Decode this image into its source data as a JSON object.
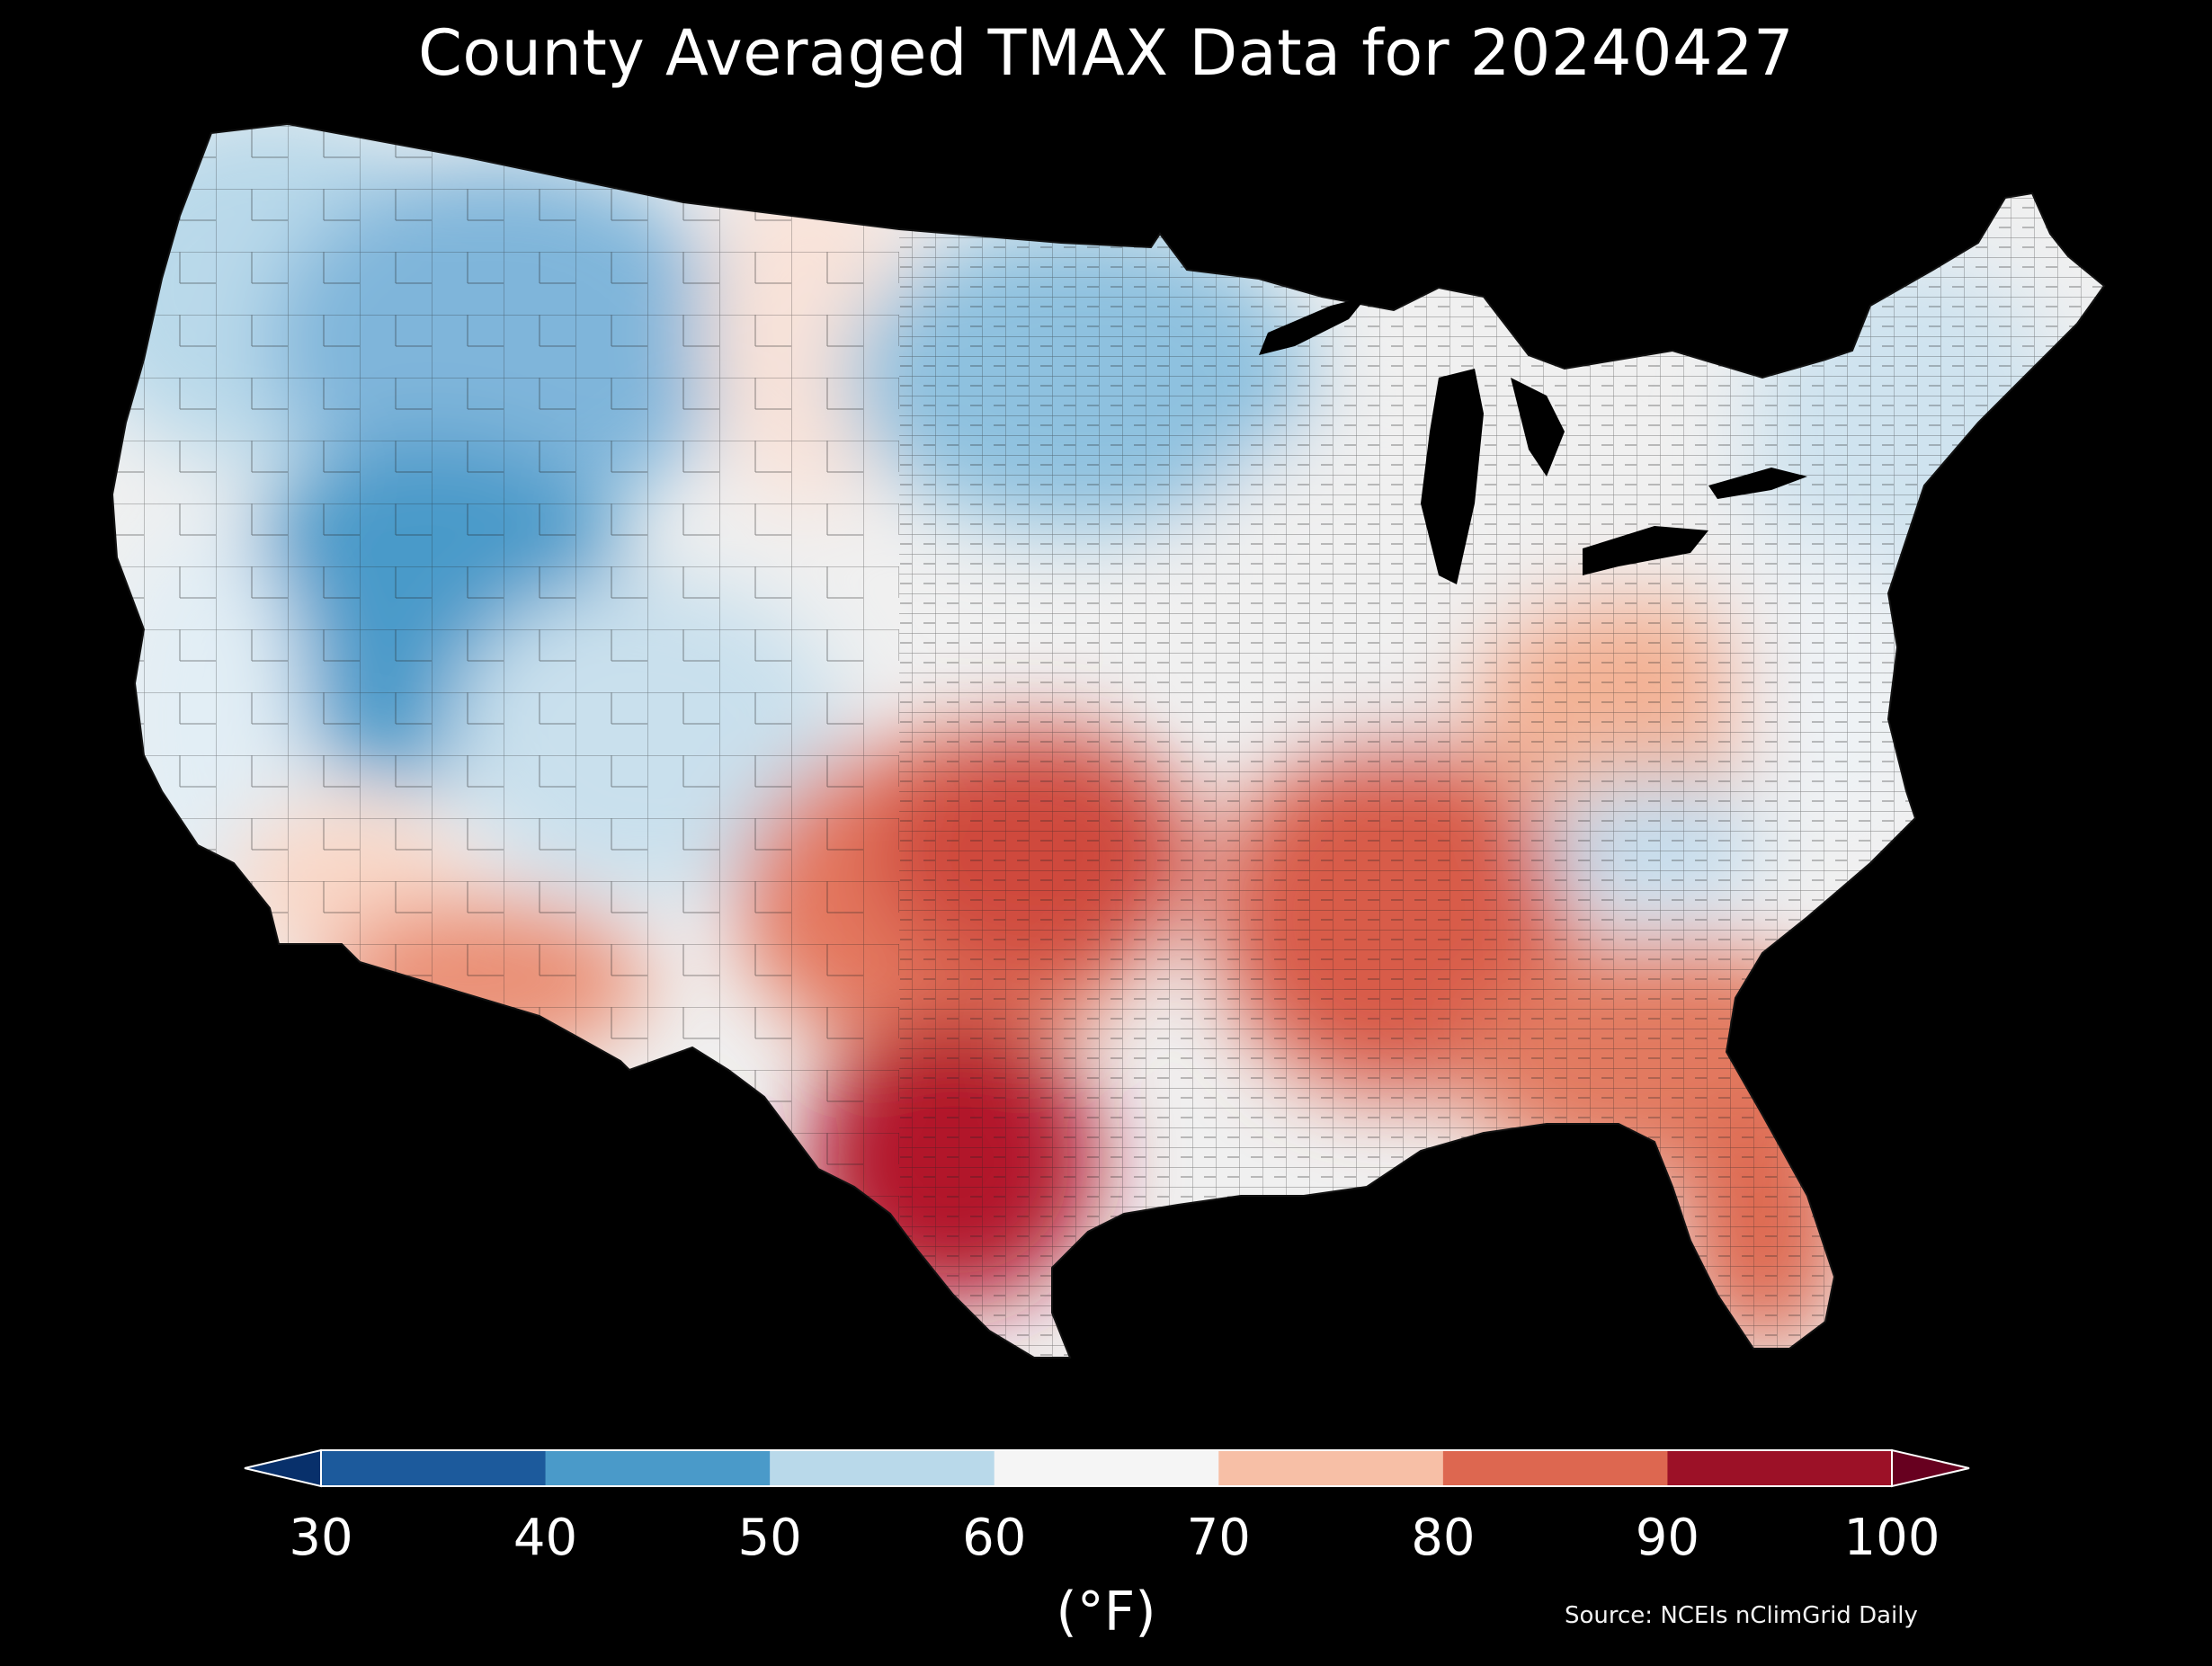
{
  "title": "County Averaged TMAX Data for 20240427",
  "colorbar": {
    "ticks": [
      "30",
      "40",
      "50",
      "60",
      "70",
      "80",
      "90",
      "100"
    ],
    "colors": [
      "#08306b",
      "#1c5a9c",
      "#4a9ac9",
      "#b9d9ea",
      "#f5f5f5",
      "#f7bfa6",
      "#dd6750",
      "#9c1127",
      "#67001f"
    ],
    "unit": "(°F)",
    "extend": "both"
  },
  "source": "Source: NCEIs nClimGrid Daily",
  "map_regions": [
    {
      "name": "pacific-northwest",
      "temp_band": "40-60",
      "color": "#b9d9ea"
    },
    {
      "name": "northern-rockies",
      "temp_band": "40-50",
      "color": "#7fb5da"
    },
    {
      "name": "great-basin",
      "temp_band": "40-50",
      "color": "#4a9ac9"
    },
    {
      "name": "northern-plains-west",
      "temp_band": "60-70",
      "color": "#f9e3d9"
    },
    {
      "name": "upper-midwest",
      "temp_band": "40-60",
      "color": "#8ec1df"
    },
    {
      "name": "great-lakes",
      "temp_band": "60-70",
      "color": "#f0f0f0"
    },
    {
      "name": "northeast",
      "temp_band": "50-60",
      "color": "#cfe3ef"
    },
    {
      "name": "california-coast",
      "temp_band": "60-70",
      "color": "#e2eef5"
    },
    {
      "name": "southern-california",
      "temp_band": "70-80",
      "color": "#f9d8c8"
    },
    {
      "name": "arizona",
      "temp_band": "80-90",
      "color": "#ea8f74"
    },
    {
      "name": "four-corners",
      "temp_band": "50-60",
      "color": "#c9e0ed"
    },
    {
      "name": "southern-plains",
      "temp_band": "80-90",
      "color": "#e4785e"
    },
    {
      "name": "oklahoma-kansas-core",
      "temp_band": "80-90",
      "color": "#cf4a3d"
    },
    {
      "name": "south-texas",
      "temp_band": "90-100",
      "color": "#b2182b"
    },
    {
      "name": "mississippi-valley",
      "temp_band": "80-90",
      "color": "#d85b48"
    },
    {
      "name": "ohio-valley",
      "temp_band": "70-80",
      "color": "#f3b295"
    },
    {
      "name": "appalachians",
      "temp_band": "50-60",
      "color": "#c5dded"
    },
    {
      "name": "southeast",
      "temp_band": "80-90",
      "color": "#e27a60"
    },
    {
      "name": "florida",
      "temp_band": "80-90",
      "color": "#dd6750"
    },
    {
      "name": "mid-atlantic",
      "temp_band": "60-70",
      "color": "#eef2f5"
    }
  ]
}
